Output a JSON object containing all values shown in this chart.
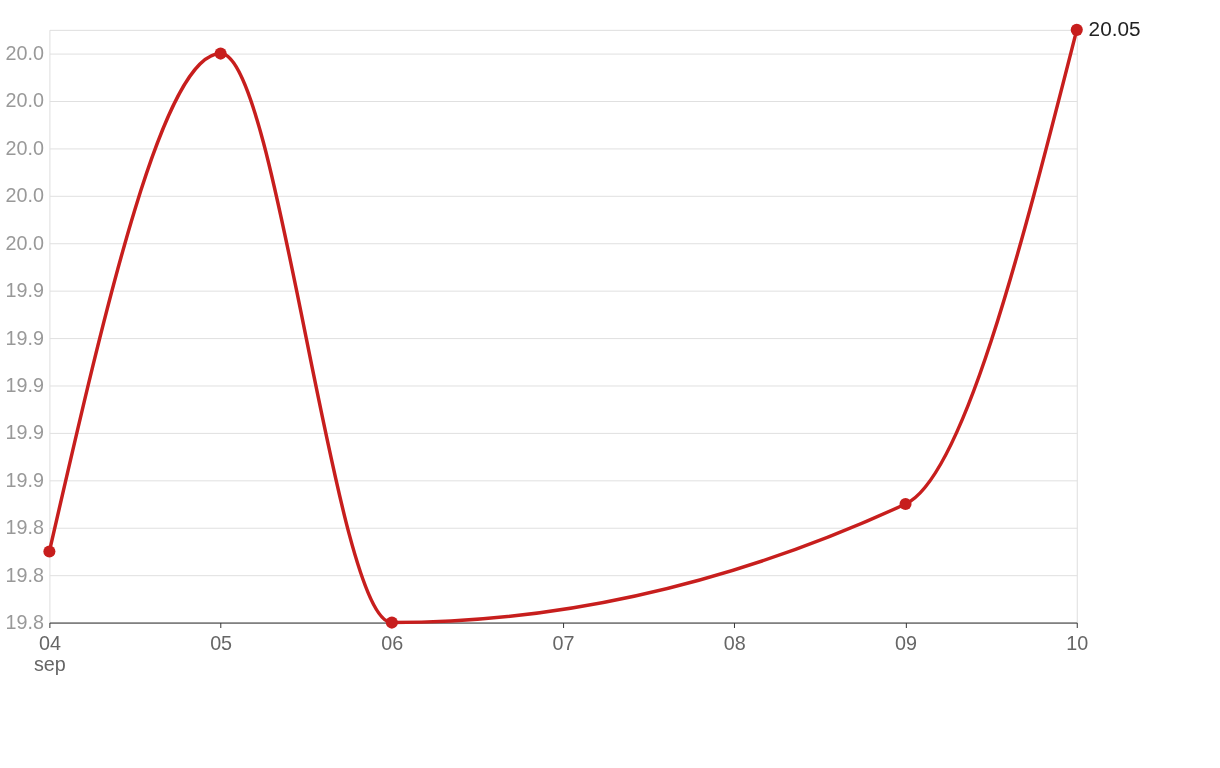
{
  "chart_data": {
    "type": "line",
    "x": [
      "--09-04",
      "--09-05",
      "--09-06",
      "--09-09",
      "--09-10"
    ],
    "series": [
      {
        "color": "#c71e1d",
        "values": [
          19.83,
          20.04,
          19.8,
          19.85,
          20.05
        ],
        "value_labels": [
          null,
          null,
          null,
          null,
          "20.05"
        ]
      }
    ],
    "xlim": [
      "--09-04",
      "--09-10"
    ],
    "xticks": [
      {
        "value": "--09-04",
        "label": "04\nsep"
      },
      {
        "value": "--09-05",
        "label": "05"
      },
      {
        "value": "--09-06",
        "label": "06"
      },
      {
        "value": "--09-07",
        "label": "07"
      },
      {
        "value": "--09-08",
        "label": "08"
      },
      {
        "value": "--09-09",
        "label": "09"
      },
      {
        "value": "--09-10",
        "label": "10"
      }
    ],
    "ylim": [
      19.8,
      20.05
    ],
    "yticks": [
      {
        "value": 19.8,
        "label": "19.8"
      },
      {
        "value": 19.82,
        "label": "19.8"
      },
      {
        "value": 19.84,
        "label": "19.8"
      },
      {
        "value": 19.86,
        "label": "19.9"
      },
      {
        "value": 19.88,
        "label": "19.9"
      },
      {
        "value": 19.9,
        "label": "19.9"
      },
      {
        "value": 19.92,
        "label": "19.9"
      },
      {
        "value": 19.94,
        "label": "19.9"
      },
      {
        "value": 19.96,
        "label": "20.0"
      },
      {
        "value": 19.98,
        "label": "20.0"
      },
      {
        "value": 20.0,
        "label": "20.0"
      },
      {
        "value": 20.02,
        "label": "20.0"
      },
      {
        "value": 20.04,
        "label": "20.0"
      }
    ],
    "grid": "y",
    "marker": "circle",
    "line_style": "solid"
  }
}
